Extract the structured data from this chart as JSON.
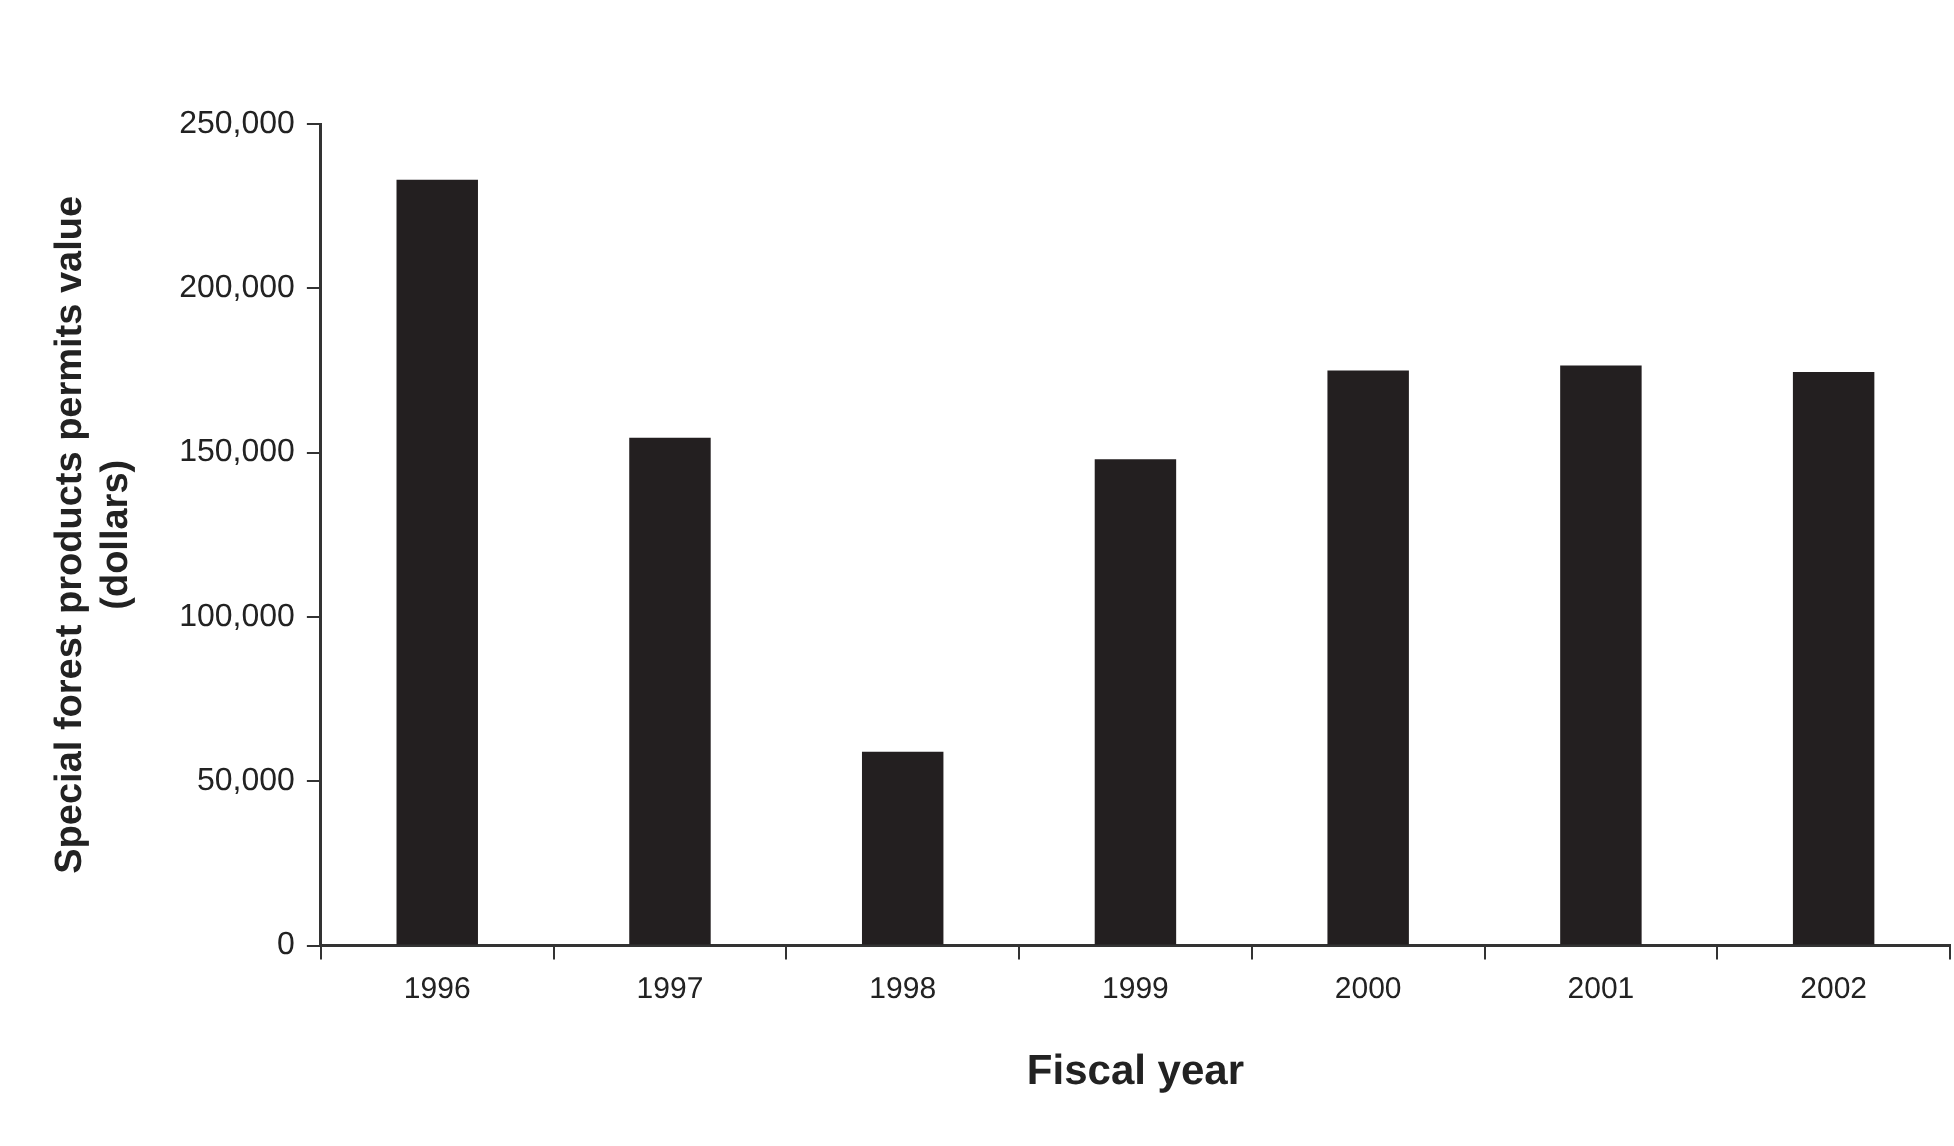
{
  "chart_data": {
    "type": "bar",
    "xlabel": "Fiscal year",
    "ylabel": "Special forest products permits value\n(dollars)",
    "categories": [
      "1996",
      "1997",
      "1998",
      "1999",
      "2000",
      "2001",
      "2002"
    ],
    "values": [
      233000,
      154500,
      59000,
      148000,
      175000,
      176500,
      174500
    ],
    "color": "#231f20",
    "ylim": [
      0,
      250000
    ],
    "yticks": [
      {
        "value": 0,
        "label": "0"
      },
      {
        "value": 50000,
        "label": "50,000"
      },
      {
        "value": 100000,
        "label": "100,000"
      },
      {
        "value": 150000,
        "label": "150,000"
      },
      {
        "value": 200000,
        "label": "200,000"
      },
      {
        "value": 250000,
        "label": "250,000"
      }
    ],
    "grid": false,
    "legend": false
  }
}
